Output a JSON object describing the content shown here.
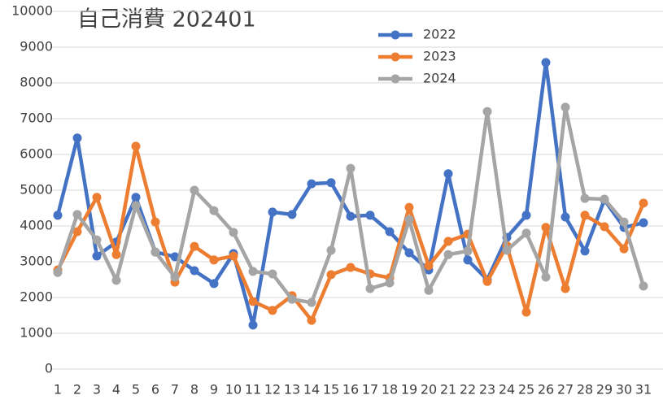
{
  "chart_data": {
    "type": "line",
    "title": "自己消費 202401",
    "x": [
      1,
      2,
      3,
      4,
      5,
      6,
      7,
      8,
      9,
      10,
      11,
      12,
      13,
      14,
      15,
      16,
      17,
      18,
      19,
      20,
      21,
      22,
      23,
      24,
      25,
      26,
      27,
      28,
      29,
      30,
      31
    ],
    "xlim": [
      1,
      31
    ],
    "ylim": [
      0,
      10000
    ],
    "yticks": [
      0,
      1000,
      2000,
      3000,
      4000,
      5000,
      6000,
      7000,
      8000,
      9000,
      10000
    ],
    "grid": true,
    "series": [
      {
        "name": "2022",
        "color": "#4472c4",
        "values": [
          4300,
          6460,
          3160,
          3550,
          4800,
          3270,
          3140,
          2750,
          2390,
          3230,
          1230,
          4390,
          4320,
          5180,
          5210,
          4270,
          4300,
          3840,
          3250,
          2770,
          5460,
          3050,
          2500,
          3680,
          4300,
          8570,
          4250,
          3300,
          4730,
          3960,
          4090
        ]
      },
      {
        "name": "2023",
        "color": "#ed7d31",
        "values": [
          2770,
          3840,
          4800,
          3200,
          6230,
          4110,
          2430,
          3430,
          3050,
          3160,
          1890,
          1640,
          2050,
          1360,
          2640,
          2840,
          2660,
          2550,
          4520,
          2890,
          3570,
          3770,
          2450,
          3450,
          1590,
          3960,
          2250,
          4300,
          3980,
          3360,
          4640
        ]
      },
      {
        "name": "2024",
        "color": "#a5a5a5",
        "values": [
          2700,
          4320,
          3610,
          2480,
          4570,
          3270,
          2570,
          5000,
          4430,
          3820,
          2730,
          2660,
          1950,
          1860,
          3320,
          5610,
          2250,
          2410,
          4180,
          2200,
          3200,
          3300,
          7200,
          3320,
          3800,
          2570,
          7320,
          4770,
          4750,
          4110,
          2320
        ]
      }
    ]
  }
}
